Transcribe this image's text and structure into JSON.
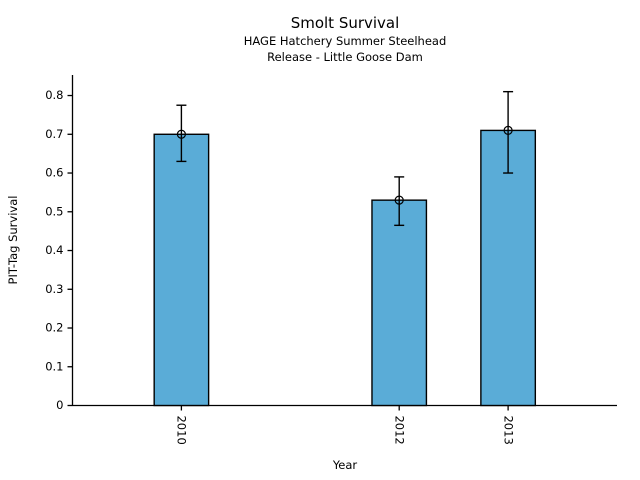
{
  "chart_data": {
    "type": "bar",
    "title": "Smolt Survival",
    "subtitle_lines": [
      "HAGE Hatchery Summer Steelhead",
      "Release - Little Goose Dam"
    ],
    "xlabel": "Year",
    "ylabel": "PIT-Tag Survival",
    "categories": [
      "2010",
      "2012",
      "2013"
    ],
    "x": [
      2010,
      2012,
      2013
    ],
    "values": [
      0.7,
      0.53,
      0.71
    ],
    "error_low": [
      0.63,
      0.465,
      0.6
    ],
    "error_high": [
      0.775,
      0.59,
      0.81
    ],
    "xlim": [
      2009,
      2014
    ],
    "ylim": [
      0,
      0.853
    ],
    "yticks": [
      0,
      0.1,
      0.2,
      0.3,
      0.4,
      0.5,
      0.6,
      0.7,
      0.8
    ],
    "ytick_labels": [
      "0",
      "0.1",
      "0.2",
      "0.3",
      "0.4",
      "0.5",
      "0.6",
      "0.7",
      "0.8"
    ],
    "bar_width_years": 0.5,
    "bar_color": "#5AACD7",
    "bar_edge_color": "#000000",
    "marker": "open-circle",
    "grid": false,
    "legend": null
  }
}
